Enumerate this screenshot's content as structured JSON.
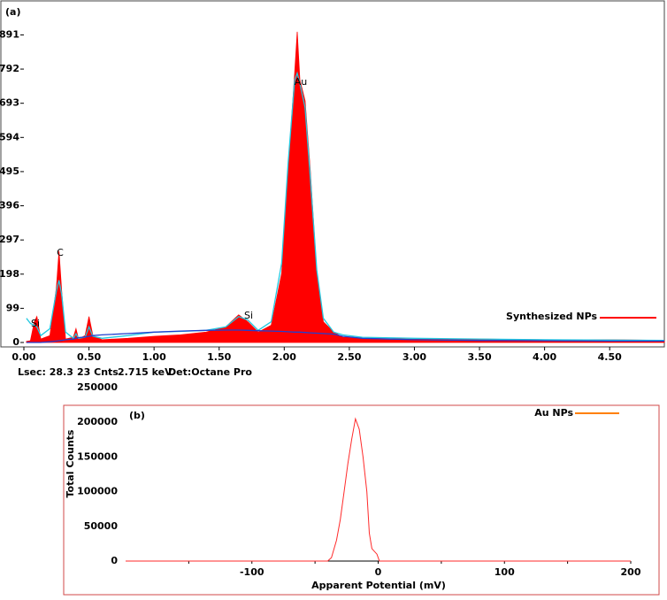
{
  "chart_data": [
    {
      "type": "area",
      "panel_label": "(a)",
      "x": [
        0.02,
        0.05,
        0.08,
        0.1,
        0.13,
        0.2,
        0.25,
        0.27,
        0.29,
        0.32,
        0.38,
        0.4,
        0.42,
        0.47,
        0.5,
        0.53,
        0.6,
        0.8,
        1.0,
        1.2,
        1.4,
        1.55,
        1.65,
        1.72,
        1.8,
        1.9,
        1.98,
        2.03,
        2.08,
        2.1,
        2.12,
        2.16,
        2.2,
        2.25,
        2.3,
        2.38,
        2.45,
        2.6,
        3.0,
        3.5,
        4.0,
        4.5,
        4.92
      ],
      "series": [
        {
          "name": "Synthesized NPs",
          "color": "#ff0000",
          "values": [
            3,
            5,
            60,
            75,
            10,
            20,
            160,
            265,
            150,
            10,
            15,
            40,
            10,
            20,
            75,
            20,
            8,
            12,
            18,
            22,
            30,
            45,
            80,
            60,
            30,
            50,
            200,
            500,
            780,
            900,
            760,
            700,
            500,
            200,
            60,
            30,
            15,
            12,
            10,
            10,
            8,
            8,
            6
          ]
        },
        {
          "color": "#22c8e0",
          "values": [
            70,
            55,
            50,
            45,
            20,
            40,
            150,
            180,
            140,
            30,
            12,
            25,
            12,
            15,
            45,
            18,
            12,
            20,
            30,
            32,
            35,
            45,
            75,
            65,
            35,
            60,
            230,
            520,
            760,
            780,
            750,
            680,
            480,
            210,
            70,
            30,
            22,
            15,
            12,
            10,
            8,
            7,
            6
          ]
        },
        {
          "color": "#2040d0",
          "values": [
            0,
            0,
            0,
            0,
            0,
            2,
            4,
            5,
            6,
            8,
            10,
            12,
            14,
            16,
            18,
            20,
            22,
            26,
            30,
            33,
            35,
            36,
            36,
            35,
            34,
            33,
            32,
            31,
            30,
            30,
            30,
            29,
            28,
            27,
            26,
            24,
            18,
            12,
            8,
            6,
            5,
            4,
            4
          ]
        }
      ],
      "xlim": [
        0,
        4.92
      ],
      "xticks": [
        {
          "value": 0,
          "label": "0.00"
        },
        {
          "value": 0.5,
          "label": "0.50"
        },
        {
          "value": 1,
          "label": "1.00"
        },
        {
          "value": 1.5,
          "label": "1.50"
        },
        {
          "value": 2,
          "label": "2.00"
        },
        {
          "value": 2.5,
          "label": "2.50"
        },
        {
          "value": 3,
          "label": "3.00"
        },
        {
          "value": 3.5,
          "label": "3.50"
        },
        {
          "value": 4,
          "label": "4.00"
        },
        {
          "value": 4.5,
          "label": "4.50"
        }
      ],
      "ylim": [
        0,
        987
      ],
      "yticks": [
        0,
        99,
        198,
        297,
        396,
        495,
        594,
        693,
        792,
        891
      ],
      "annotations": [
        "Si",
        "C",
        "Si",
        "Au"
      ],
      "footer": [
        "Lsec: 28.3",
        "23 Cnts",
        "2.715 keV",
        "Det:Octane Pro"
      ],
      "legend": "right"
    },
    {
      "type": "line",
      "panel_label": "(b)",
      "x_label": "Apparent Potential (mV)",
      "y_label": "Total Counts",
      "x": [
        -200,
        -40,
        -37,
        -33,
        -30,
        -27,
        -24,
        -21,
        -18,
        -15,
        -12,
        -9,
        -7,
        -5,
        -1,
        1,
        200
      ],
      "series": [
        {
          "name": "Au NPs",
          "color": "#ff2a2a",
          "legend_color": "#ff8000",
          "values": [
            0,
            0,
            5000,
            30000,
            60000,
            100000,
            140000,
            175000,
            205000,
            190000,
            150000,
            100000,
            40000,
            18000,
            10000,
            0,
            0
          ]
        }
      ],
      "xlim": [
        -200,
        200
      ],
      "xticks": [
        -100,
        0,
        100,
        200
      ],
      "xminorticks": [
        -150,
        -50,
        50,
        150
      ],
      "ylim": [
        0,
        250000
      ],
      "yticks": [
        0,
        50000,
        100000,
        150000,
        200000,
        250000
      ],
      "legend": "top-right"
    }
  ]
}
